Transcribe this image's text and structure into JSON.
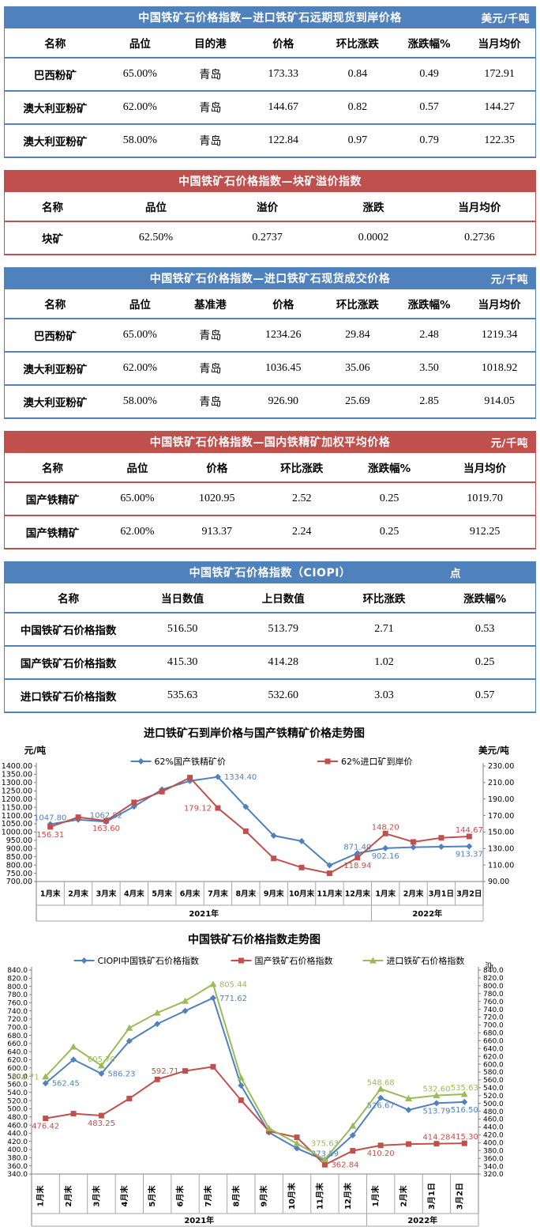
{
  "theme": {
    "blue": "#4f81bd",
    "red": "#c0504d",
    "series_blue": "#4f81bd",
    "series_red": "#c0504d",
    "series_green": "#9bbb59"
  },
  "tables": [
    {
      "theme": "blue",
      "title": "中国铁矿石价格指数—进口铁矿石远期现货到岸价格",
      "unit": "美元/千吨",
      "columns": [
        "名称",
        "品位",
        "目的港",
        "价格",
        "环比涨跌",
        "涨跌幅%",
        "当月均价"
      ],
      "rows": [
        [
          "巴西粉矿",
          "65.00%",
          "青岛",
          "173.33",
          "0.84",
          "0.49",
          "172.91"
        ],
        [
          "澳大利亚粉矿",
          "62.00%",
          "青岛",
          "144.67",
          "0.82",
          "0.57",
          "144.27"
        ],
        [
          "澳大利亚粉矿",
          "58.00%",
          "青岛",
          "122.84",
          "0.97",
          "0.79",
          "122.35"
        ]
      ]
    },
    {
      "theme": "red",
      "title": "中国铁矿石价格指数—块矿溢价指数",
      "unit": "",
      "columns": [
        "名称",
        "品位",
        "溢价",
        "涨跌",
        "当月均价"
      ],
      "rows": [
        [
          "块矿",
          "62.50%",
          "0.2737",
          "0.0002",
          "0.2736"
        ]
      ]
    },
    {
      "theme": "blue",
      "title": "中国铁矿石价格指数—进口铁矿石现货成交价格",
      "unit": "元/千吨",
      "columns": [
        "名称",
        "品位",
        "基准港",
        "价格",
        "环比涨跌",
        "涨跌幅%",
        "当月均价"
      ],
      "rows": [
        [
          "巴西粉矿",
          "65.00%",
          "青岛",
          "1234.26",
          "29.84",
          "2.48",
          "1219.34"
        ],
        [
          "澳大利亚粉矿",
          "62.00%",
          "青岛",
          "1036.45",
          "35.06",
          "3.50",
          "1018.92"
        ],
        [
          "澳大利亚粉矿",
          "58.00%",
          "青岛",
          "926.90",
          "25.69",
          "2.85",
          "914.05"
        ]
      ]
    },
    {
      "theme": "red",
      "title": "中国铁矿石价格指数—国内铁精矿加权平均价格",
      "unit": "元/千吨",
      "columns": [
        "名称",
        "品位",
        "价格",
        "环比涨跌",
        "涨跌幅%",
        "当月均价"
      ],
      "rows": [
        [
          "国产铁精矿",
          "65.00%",
          "1020.95",
          "2.52",
          "0.25",
          "1019.70"
        ],
        [
          "国产铁精矿",
          "62.00%",
          "913.37",
          "2.24",
          "0.25",
          "912.25"
        ]
      ]
    },
    {
      "theme": "blue",
      "title": "中国铁矿石价格指数（CIOPI）",
      "unit": "点",
      "columns": [
        "名称",
        "当日数值",
        "上日数值",
        "环比涨跌",
        "涨跌幅%"
      ],
      "rows": [
        [
          "中国铁矿石价格指数",
          "516.50",
          "513.79",
          "2.71",
          "0.53"
        ],
        [
          "国产铁矿石价格指数",
          "415.30",
          "414.28",
          "1.02",
          "0.25"
        ],
        [
          "进口铁矿石价格指数",
          "535.63",
          "532.60",
          "3.03",
          "0.57"
        ]
      ]
    }
  ],
  "chart_data": [
    {
      "type": "line",
      "title": "进口铁矿石到岸价格与国产铁精矿价格走势图",
      "left_axis": {
        "label": "元/吨",
        "min": 700,
        "max": 1400,
        "step": 50,
        "decimals": 2
      },
      "right_axis": {
        "label": "美元/吨",
        "min": 90,
        "max": 230,
        "step": 20,
        "decimals": 2
      },
      "categories": [
        "1月末",
        "2月末",
        "3月末",
        "4月末",
        "5月末",
        "6月末",
        "7月末",
        "8月末",
        "9月末",
        "10月末",
        "11月末",
        "12月末",
        "1月末",
        "2月末",
        "3月1日",
        "3月2日"
      ],
      "year_groups": [
        {
          "label": "2021年",
          "span": 12
        },
        {
          "label": "2022年",
          "span": 4
        }
      ],
      "x_label_rotated": false,
      "legend_position": "top",
      "grid": false,
      "series": [
        {
          "name": "62%国产铁精矿价",
          "color": "#4f81bd",
          "marker": "diamond",
          "axis": "left",
          "values": [
            1047.8,
            1075,
            1062.82,
            1155,
            1258,
            1310,
            1334.4,
            1153,
            978,
            945,
            798,
            871.4,
            902.16,
            908,
            911,
            913.37
          ],
          "point_labels": [
            {
              "i": 0,
              "text": "1047.80",
              "pos": "above"
            },
            {
              "i": 2,
              "text": "1062.82",
              "pos": "above"
            },
            {
              "i": 6,
              "text": "1334.40",
              "pos": "right"
            },
            {
              "i": 11,
              "text": "871.40",
              "pos": "above"
            },
            {
              "i": 12,
              "text": "902.16",
              "pos": "below"
            },
            {
              "i": 15,
              "text": "913.37",
              "pos": "below"
            }
          ]
        },
        {
          "name": "62%进口矿到岸价",
          "color": "#c0504d",
          "marker": "square",
          "axis": "right",
          "values": [
            156.31,
            168,
            163.6,
            186,
            199,
            216,
            179.12,
            151,
            118,
            107,
            100,
            118.94,
            148.2,
            138,
            143,
            144.67
          ],
          "point_labels": [
            {
              "i": 0,
              "text": "156.31",
              "pos": "below"
            },
            {
              "i": 2,
              "text": "163.60",
              "pos": "below"
            },
            {
              "i": 6,
              "text": "179.12",
              "pos": "left"
            },
            {
              "i": 11,
              "text": "118.94",
              "pos": "below"
            },
            {
              "i": 12,
              "text": "148.20",
              "pos": "above"
            },
            {
              "i": 15,
              "text": "144.67",
              "pos": "above"
            }
          ]
        }
      ]
    },
    {
      "type": "line",
      "title": "中国铁矿石价格指数走势图",
      "left_axis": {
        "label": "",
        "min": 340,
        "max": 840,
        "step": 20,
        "decimals": 1
      },
      "right_axis": {
        "label": "点",
        "min": 320,
        "max": 840,
        "step": 20,
        "decimals": 1
      },
      "categories": [
        "1月末",
        "2月末",
        "3月末",
        "4月末",
        "5月末",
        "6月末",
        "7月末",
        "8月末",
        "9月末",
        "10月末",
        "11月末",
        "12月末",
        "1月末",
        "2月末",
        "3月1日",
        "3月2日"
      ],
      "year_groups": [
        {
          "label": "2021年",
          "span": 12
        },
        {
          "label": "2022年",
          "span": 4
        }
      ],
      "x_label_rotated": true,
      "legend_position": "top",
      "grid": false,
      "series": [
        {
          "name": "CIOPI中国铁矿石价格指数",
          "color": "#4f81bd",
          "marker": "diamond",
          "axis": "left",
          "values": [
            562.45,
            620.5,
            586.23,
            666,
            708,
            740,
            771.62,
            557,
            442,
            403,
            373.59,
            435,
            526.67,
            497,
            513.79,
            516.5
          ],
          "point_labels": [
            {
              "i": 0,
              "text": "562.45",
              "pos": "right"
            },
            {
              "i": 2,
              "text": "586.23",
              "pos": "right"
            },
            {
              "i": 6,
              "text": "771.62",
              "pos": "right"
            },
            {
              "i": 10,
              "text": "373.59",
              "pos": "above"
            },
            {
              "i": 12,
              "text": "526.67",
              "pos": "below"
            },
            {
              "i": 14,
              "text": "513.79",
              "pos": "below"
            },
            {
              "i": 15,
              "text": "516.50",
              "pos": "below"
            }
          ]
        },
        {
          "name": "国产铁矿石价格指数",
          "color": "#c0504d",
          "marker": "square",
          "axis": "left",
          "values": [
            476.42,
            488,
            483.25,
            525,
            572,
            592.71,
            603,
            521,
            445,
            430,
            362.84,
            397,
            410.2,
            413.5,
            414.28,
            415.3
          ],
          "point_labels": [
            {
              "i": 0,
              "text": "476.42",
              "pos": "below"
            },
            {
              "i": 2,
              "text": "483.25",
              "pos": "below"
            },
            {
              "i": 5,
              "text": "592.71",
              "pos": "left"
            },
            {
              "i": 10,
              "text": "362.84",
              "pos": "right"
            },
            {
              "i": 12,
              "text": "410.20",
              "pos": "below"
            },
            {
              "i": 14,
              "text": "414.28",
              "pos": "above"
            },
            {
              "i": 15,
              "text": "415.30",
              "pos": "above"
            }
          ]
        },
        {
          "name": "进口铁矿石价格指数",
          "color": "#9bbb59",
          "marker": "triangle",
          "axis": "left",
          "values": [
            578.71,
            652,
            605.7,
            698,
            735,
            764,
            805.44,
            576,
            452,
            415,
            375.63,
            458,
            548.68,
            525,
            532.6,
            535.63
          ],
          "point_labels": [
            {
              "i": 0,
              "text": "578.71",
              "pos": "left"
            },
            {
              "i": 2,
              "text": "605.70",
              "pos": "above"
            },
            {
              "i": 6,
              "text": "805.44",
              "pos": "right"
            },
            {
              "i": 10,
              "text": "375.63",
              "pos": "above2"
            },
            {
              "i": 12,
              "text": "548.68",
              "pos": "above"
            },
            {
              "i": 14,
              "text": "532.60",
              "pos": "above"
            },
            {
              "i": 15,
              "text": "535.63",
              "pos": "above"
            }
          ]
        }
      ]
    }
  ]
}
